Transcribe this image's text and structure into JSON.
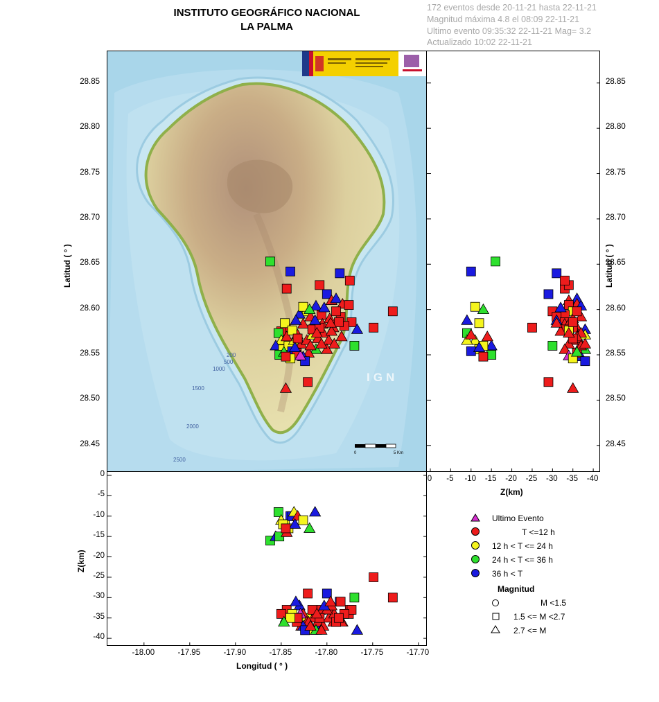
{
  "header": {
    "title_line1": "INSTITUTO GEOGRÁFICO NACIONAL",
    "title_line2": "LA PALMA",
    "info": [
      "172 eventos desde 20-11-21 hasta 22-11-21",
      "Magnitud máxima 4.8 el 08:09 22-11-21",
      "Ultimo evento   09:35:32 22-11-21  Mag= 3.2",
      "Actualizado   10:02  22-11-21"
    ]
  },
  "map": {
    "watermark": "IGN",
    "scale_label_start": "0",
    "scale_label_end": "5 Km",
    "depth_labels": [
      "200",
      "500",
      "1000",
      "1500",
      "2000",
      "2500"
    ],
    "colors": {
      "sea": "#a9d6ea",
      "sea_deep": "#95cbe4",
      "land_low": "#e3dba6",
      "land_high": "#b89870",
      "coast": "#8fb04a"
    }
  },
  "axes": {
    "lat_label": "Latitud ( ° )",
    "lat_ticks": [
      "28.85",
      "28.80",
      "28.75",
      "28.70",
      "28.65",
      "28.60",
      "28.55",
      "28.50",
      "28.45"
    ],
    "z_label_right": "Z(km)",
    "z_ticks_right": [
      "0",
      "-5",
      "-10",
      "-15",
      "-20",
      "-25",
      "-30",
      "-35",
      "-40"
    ],
    "z_label_bottom": "Z(km)",
    "z_ticks_bottom": [
      "0",
      "-5",
      "-10",
      "-15",
      "-20",
      "-25",
      "-30",
      "-35",
      "-40"
    ],
    "lon_label": "Longitud ( ° )",
    "lon_ticks": [
      "-18.00",
      "-17.95",
      "-17.90",
      "-17.85",
      "-17.80",
      "-17.75",
      "-17.70"
    ]
  },
  "legend": {
    "items": [
      {
        "label": "Ultimo Evento",
        "shape": "triangle",
        "color": "#d62fd0"
      },
      {
        "label": "T <=12 h",
        "shape": "circle",
        "color": "#ee1c1c"
      },
      {
        "label": "12 h  < T <= 24 h",
        "shape": "circle",
        "color": "#f5f51e"
      },
      {
        "label": "24 h  < T <= 36 h",
        "shape": "circle",
        "color": "#2ee02e"
      },
      {
        "label": "36 h <  T",
        "shape": "circle",
        "color": "#1a1ae0"
      }
    ],
    "mag_title": "Magnitud",
    "mag_items": [
      {
        "label": "M <1.5",
        "shape": "circle"
      },
      {
        "label": "1.5 <= M <2.7",
        "shape": "square"
      },
      {
        "label": "2.7 <= M",
        "shape": "triangle"
      }
    ]
  },
  "chart_data": {
    "type": "scatter",
    "title": "LA PALMA",
    "xlabel": "Longitud ( ° )",
    "ylabel": "Latitud ( ° )",
    "xlim": [
      -18.04,
      -17.69
    ],
    "ylim": [
      28.42,
      28.885
    ],
    "zlim": [
      0,
      -41
    ],
    "events": [
      {
        "lon": -17.862,
        "lat": 28.653,
        "z": -16,
        "cls": "green",
        "mag": "square"
      },
      {
        "lon": -17.84,
        "lat": 28.642,
        "z": -10,
        "cls": "blue",
        "mag": "square"
      },
      {
        "lon": -17.844,
        "lat": 28.623,
        "z": -33,
        "cls": "red",
        "mag": "square"
      },
      {
        "lon": -17.808,
        "lat": 28.627,
        "z": -34,
        "cls": "red",
        "mag": "square"
      },
      {
        "lon": -17.786,
        "lat": 28.64,
        "z": -31,
        "cls": "blue",
        "mag": "square"
      },
      {
        "lon": -17.775,
        "lat": 28.632,
        "z": -33,
        "cls": "red",
        "mag": "square"
      },
      {
        "lon": -17.749,
        "lat": 28.58,
        "z": -25,
        "cls": "red",
        "mag": "square"
      },
      {
        "lon": -17.728,
        "lat": 28.598,
        "z": -30,
        "cls": "red",
        "mag": "square"
      },
      {
        "lon": -17.77,
        "lat": 28.56,
        "z": -30,
        "cls": "green",
        "mag": "square"
      },
      {
        "lon": -17.821,
        "lat": 28.52,
        "z": -29,
        "cls": "red",
        "mag": "square"
      },
      {
        "lon": -17.845,
        "lat": 28.513,
        "z": -35,
        "cls": "red",
        "mag": "triangle"
      },
      {
        "lon": -17.8,
        "lat": 28.617,
        "z": -29,
        "cls": "blue",
        "mag": "square"
      },
      {
        "lon": -17.795,
        "lat": 28.61,
        "z": -34,
        "cls": "red",
        "mag": "triangle"
      },
      {
        "lon": -17.79,
        "lat": 28.612,
        "z": -36,
        "cls": "blue",
        "mag": "triangle"
      },
      {
        "lon": -17.783,
        "lat": 28.606,
        "z": -36,
        "cls": "red",
        "mag": "triangle"
      },
      {
        "lon": -17.776,
        "lat": 28.605,
        "z": -34,
        "cls": "red",
        "mag": "square"
      },
      {
        "lon": -17.812,
        "lat": 28.604,
        "z": -37,
        "cls": "blue",
        "mag": "triangle"
      },
      {
        "lon": -17.822,
        "lat": 28.598,
        "z": -35,
        "cls": "yellow",
        "mag": "square"
      },
      {
        "lon": -17.83,
        "lat": 28.595,
        "z": -32,
        "cls": "blue",
        "mag": "triangle"
      },
      {
        "lon": -17.818,
        "lat": 28.592,
        "z": -37,
        "cls": "red",
        "mag": "triangle"
      },
      {
        "lon": -17.806,
        "lat": 28.594,
        "z": -33,
        "cls": "red",
        "mag": "square"
      },
      {
        "lon": -17.797,
        "lat": 28.59,
        "z": -35,
        "cls": "red",
        "mag": "triangle"
      },
      {
        "lon": -17.785,
        "lat": 28.592,
        "z": -31,
        "cls": "red",
        "mag": "square"
      },
      {
        "lon": -17.773,
        "lat": 28.586,
        "z": -33,
        "cls": "red",
        "mag": "square"
      },
      {
        "lon": -17.767,
        "lat": 28.578,
        "z": -38,
        "cls": "blue",
        "mag": "triangle"
      },
      {
        "lon": -17.781,
        "lat": 28.582,
        "z": -34,
        "cls": "red",
        "mag": "square"
      },
      {
        "lon": -17.793,
        "lat": 28.58,
        "z": -36,
        "cls": "red",
        "mag": "triangle"
      },
      {
        "lon": -17.805,
        "lat": 28.584,
        "z": -33,
        "cls": "red",
        "mag": "triangle"
      },
      {
        "lon": -17.815,
        "lat": 28.582,
        "z": -35,
        "cls": "red",
        "mag": "triangle"
      },
      {
        "lon": -17.826,
        "lat": 28.584,
        "z": -34,
        "cls": "red",
        "mag": "triangle"
      },
      {
        "lon": -17.834,
        "lat": 28.588,
        "z": -31,
        "cls": "blue",
        "mag": "triangle"
      },
      {
        "lon": -17.842,
        "lat": 28.58,
        "z": -35,
        "cls": "red",
        "mag": "triangle"
      },
      {
        "lon": -17.85,
        "lat": 28.576,
        "z": -34,
        "cls": "red",
        "mag": "square"
      },
      {
        "lon": -17.846,
        "lat": 28.585,
        "z": -12,
        "cls": "yellow",
        "mag": "square"
      },
      {
        "lon": -17.853,
        "lat": 28.574,
        "z": -9,
        "cls": "green",
        "mag": "square"
      },
      {
        "lon": -17.85,
        "lat": 28.566,
        "z": -11,
        "cls": "yellow",
        "mag": "triangle"
      },
      {
        "lon": -17.856,
        "lat": 28.56,
        "z": -15,
        "cls": "blue",
        "mag": "triangle"
      },
      {
        "lon": -17.848,
        "lat": 28.556,
        "z": -12,
        "cls": "yellow",
        "mag": "square"
      },
      {
        "lon": -17.852,
        "lat": 28.55,
        "z": -15,
        "cls": "green",
        "mag": "square"
      },
      {
        "lon": -17.842,
        "lat": 28.56,
        "z": -13,
        "cls": "yellow",
        "mag": "square"
      },
      {
        "lon": -17.838,
        "lat": 28.554,
        "z": -10,
        "cls": "blue",
        "mag": "square"
      },
      {
        "lon": -17.836,
        "lat": 28.566,
        "z": -9,
        "cls": "yellow",
        "mag": "triangle"
      },
      {
        "lon": -17.844,
        "lat": 28.57,
        "z": -14,
        "cls": "red",
        "mag": "triangle"
      },
      {
        "lon": -17.832,
        "lat": 28.572,
        "z": -10,
        "cls": "red",
        "mag": "triangle"
      },
      {
        "lon": -17.828,
        "lat": 28.562,
        "z": -37,
        "cls": "red",
        "mag": "triangle"
      },
      {
        "lon": -17.822,
        "lat": 28.566,
        "z": -36,
        "cls": "red",
        "mag": "triangle"
      },
      {
        "lon": -17.816,
        "lat": 28.572,
        "z": -38,
        "cls": "yellow",
        "mag": "triangle"
      },
      {
        "lon": -17.81,
        "lat": 28.568,
        "z": -36,
        "cls": "red",
        "mag": "triangle"
      },
      {
        "lon": -17.804,
        "lat": 28.574,
        "z": -37,
        "cls": "red",
        "mag": "triangle"
      },
      {
        "lon": -17.798,
        "lat": 28.566,
        "z": -35,
        "cls": "red",
        "mag": "triangle"
      },
      {
        "lon": -17.792,
        "lat": 28.562,
        "z": -34,
        "cls": "red",
        "mag": "triangle"
      },
      {
        "lon": -17.8,
        "lat": 28.556,
        "z": -33,
        "cls": "red",
        "mag": "triangle"
      },
      {
        "lon": -17.812,
        "lat": 28.556,
        "z": -38,
        "cls": "green",
        "mag": "triangle"
      },
      {
        "lon": -17.82,
        "lat": 28.552,
        "z": -36,
        "cls": "red",
        "mag": "triangle"
      },
      {
        "lon": -17.826,
        "lat": 28.548,
        "z": -37,
        "cls": "blue",
        "mag": "triangle"
      },
      {
        "lon": -17.833,
        "lat": 28.552,
        "z": -36,
        "cls": "red",
        "mag": "square"
      },
      {
        "lon": -17.824,
        "lat": 28.543,
        "z": -38,
        "cls": "blue",
        "mag": "square"
      },
      {
        "lon": -17.829,
        "lat": 28.549,
        "z": -34,
        "cls": "magenta",
        "mag": "triangle"
      },
      {
        "lon": -17.816,
        "lat": 28.578,
        "z": -33,
        "cls": "red",
        "mag": "square"
      },
      {
        "lon": -17.808,
        "lat": 28.58,
        "z": -35,
        "cls": "red",
        "mag": "square"
      },
      {
        "lon": -17.795,
        "lat": 28.576,
        "z": -32,
        "cls": "red",
        "mag": "triangle"
      },
      {
        "lon": -17.784,
        "lat": 28.57,
        "z": -36,
        "cls": "red",
        "mag": "triangle"
      },
      {
        "lon": -17.838,
        "lat": 28.577,
        "z": -34,
        "cls": "yellow",
        "mag": "square"
      },
      {
        "lon": -17.813,
        "lat": 28.588,
        "z": -9,
        "cls": "blue",
        "mag": "triangle"
      },
      {
        "lon": -17.826,
        "lat": 28.603,
        "z": -11,
        "cls": "yellow",
        "mag": "square"
      },
      {
        "lon": -17.819,
        "lat": 28.6,
        "z": -13,
        "cls": "green",
        "mag": "triangle"
      },
      {
        "lon": -17.832,
        "lat": 28.568,
        "z": -35,
        "cls": "red",
        "mag": "square"
      },
      {
        "lon": -17.818,
        "lat": 28.56,
        "z": -37,
        "cls": "red",
        "mag": "triangle"
      },
      {
        "lon": -17.806,
        "lat": 28.562,
        "z": -38,
        "cls": "red",
        "mag": "triangle"
      },
      {
        "lon": -17.79,
        "lat": 28.598,
        "z": -36,
        "cls": "red",
        "mag": "square"
      },
      {
        "lon": -17.803,
        "lat": 28.602,
        "z": -32,
        "cls": "blue",
        "mag": "triangle"
      },
      {
        "lon": -17.84,
        "lat": 28.546,
        "z": -35,
        "cls": "yellow",
        "mag": "square"
      },
      {
        "lon": -17.847,
        "lat": 28.553,
        "z": -36,
        "cls": "green",
        "mag": "triangle"
      },
      {
        "lon": -17.835,
        "lat": 28.558,
        "z": -12,
        "cls": "blue",
        "mag": "triangle"
      },
      {
        "lon": -17.845,
        "lat": 28.548,
        "z": -13,
        "cls": "red",
        "mag": "square"
      },
      {
        "lon": -17.787,
        "lat": 28.586,
        "z": -35,
        "cls": "red",
        "mag": "square"
      },
      {
        "lon": -17.796,
        "lat": 28.585,
        "z": -31,
        "cls": "red",
        "mag": "triangle"
      },
      {
        "lon": -17.811,
        "lat": 28.574,
        "z": -34,
        "cls": "red",
        "mag": "triangle"
      }
    ]
  }
}
